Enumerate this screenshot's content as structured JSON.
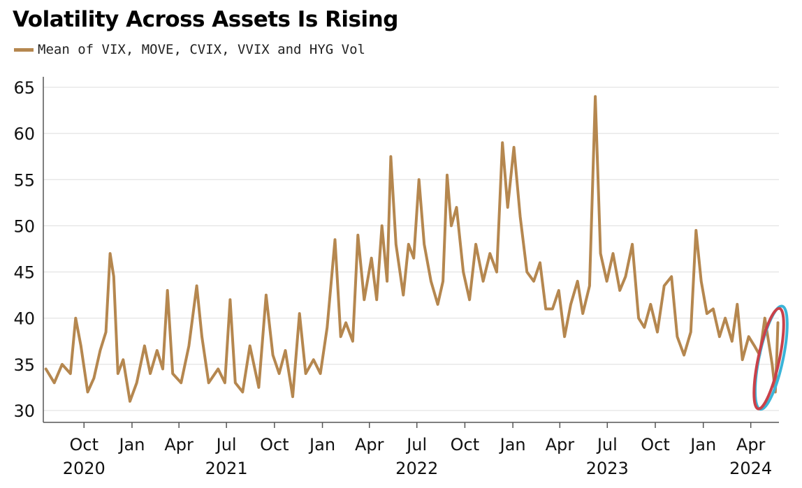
{
  "chart_data": {
    "type": "line",
    "title": "Volatility Across Assets Is Rising",
    "xlabel": "",
    "ylabel": "",
    "ylim": [
      30,
      65
    ],
    "y_ticks": [
      "30",
      "35",
      "40",
      "45",
      "50",
      "55",
      "60",
      "65"
    ],
    "x_ticks": [
      {
        "month": "Oct",
        "year": "2020"
      },
      {
        "month": "Jan",
        "year": ""
      },
      {
        "month": "Apr",
        "year": ""
      },
      {
        "month": "Jul",
        "year": "2021"
      },
      {
        "month": "Oct",
        "year": ""
      },
      {
        "month": "Jan",
        "year": ""
      },
      {
        "month": "Apr",
        "year": ""
      },
      {
        "month": "Jul",
        "year": "2022"
      },
      {
        "month": "Oct",
        "year": ""
      },
      {
        "month": "Jan",
        "year": ""
      },
      {
        "month": "Apr",
        "year": ""
      },
      {
        "month": "Jul",
        "year": "2023"
      },
      {
        "month": "Oct",
        "year": ""
      },
      {
        "month": "Jan",
        "year": ""
      },
      {
        "month": "Apr",
        "year": "2024"
      }
    ],
    "xlim": [
      "2020-07-15",
      "2024-05-25"
    ],
    "grid": true,
    "legend_position": "top-left",
    "series": [
      {
        "name": "Mean of VIX, MOVE, CVIX, VVIX and HYG Vol",
        "color": "#b5874f",
        "points": [
          [
            "2020-07-20",
            34.5
          ],
          [
            "2020-08-05",
            33.0
          ],
          [
            "2020-08-20",
            35.0
          ],
          [
            "2020-09-05",
            34.0
          ],
          [
            "2020-09-15",
            40.0
          ],
          [
            "2020-09-25",
            37.0
          ],
          [
            "2020-10-08",
            32.0
          ],
          [
            "2020-10-20",
            33.5
          ],
          [
            "2020-11-01",
            36.5
          ],
          [
            "2020-11-12",
            38.5
          ],
          [
            "2020-11-20",
            47.0
          ],
          [
            "2020-11-27",
            44.5
          ],
          [
            "2020-12-05",
            34.0
          ],
          [
            "2020-12-15",
            35.5
          ],
          [
            "2020-12-28",
            31.0
          ],
          [
            "2021-01-10",
            33.0
          ],
          [
            "2021-01-25",
            37.0
          ],
          [
            "2021-02-05",
            34.0
          ],
          [
            "2021-02-18",
            36.5
          ],
          [
            "2021-03-01",
            34.5
          ],
          [
            "2021-03-10",
            43.0
          ],
          [
            "2021-03-20",
            34.0
          ],
          [
            "2021-04-05",
            33.0
          ],
          [
            "2021-04-20",
            37.0
          ],
          [
            "2021-05-05",
            43.5
          ],
          [
            "2021-05-15",
            38.0
          ],
          [
            "2021-05-28",
            33.0
          ],
          [
            "2021-06-15",
            34.5
          ],
          [
            "2021-06-28",
            33.0
          ],
          [
            "2021-07-08",
            42.0
          ],
          [
            "2021-07-18",
            33.0
          ],
          [
            "2021-08-01",
            32.0
          ],
          [
            "2021-08-15",
            37.0
          ],
          [
            "2021-09-01",
            32.5
          ],
          [
            "2021-09-15",
            42.5
          ],
          [
            "2021-09-28",
            36.0
          ],
          [
            "2021-10-10",
            34.0
          ],
          [
            "2021-10-22",
            36.5
          ],
          [
            "2021-11-05",
            31.5
          ],
          [
            "2021-11-18",
            40.5
          ],
          [
            "2021-11-30",
            34.0
          ],
          [
            "2021-12-15",
            35.5
          ],
          [
            "2021-12-28",
            34.0
          ],
          [
            "2022-01-10",
            39.0
          ],
          [
            "2022-01-25",
            48.5
          ],
          [
            "2022-02-05",
            38.0
          ],
          [
            "2022-02-15",
            39.5
          ],
          [
            "2022-02-28",
            37.5
          ],
          [
            "2022-03-10",
            49.0
          ],
          [
            "2022-03-22",
            42.0
          ],
          [
            "2022-04-05",
            46.5
          ],
          [
            "2022-04-15",
            42.0
          ],
          [
            "2022-04-25",
            50.0
          ],
          [
            "2022-05-05",
            44.0
          ],
          [
            "2022-05-12",
            57.5
          ],
          [
            "2022-05-22",
            48.0
          ],
          [
            "2022-06-05",
            42.5
          ],
          [
            "2022-06-15",
            48.0
          ],
          [
            "2022-06-25",
            46.5
          ],
          [
            "2022-07-05",
            55.0
          ],
          [
            "2022-07-15",
            48.0
          ],
          [
            "2022-07-28",
            44.0
          ],
          [
            "2022-08-10",
            41.5
          ],
          [
            "2022-08-20",
            44.0
          ],
          [
            "2022-08-28",
            55.5
          ],
          [
            "2022-09-05",
            50.0
          ],
          [
            "2022-09-15",
            52.0
          ],
          [
            "2022-09-28",
            45.0
          ],
          [
            "2022-10-10",
            42.0
          ],
          [
            "2022-10-22",
            48.0
          ],
          [
            "2022-11-05",
            44.0
          ],
          [
            "2022-11-18",
            47.0
          ],
          [
            "2022-12-01",
            45.0
          ],
          [
            "2022-12-12",
            59.0
          ],
          [
            "2022-12-22",
            52.0
          ],
          [
            "2023-01-03",
            58.5
          ],
          [
            "2023-01-15",
            51.0
          ],
          [
            "2023-01-28",
            45.0
          ],
          [
            "2023-02-10",
            44.0
          ],
          [
            "2023-02-22",
            46.0
          ],
          [
            "2023-03-05",
            41.0
          ],
          [
            "2023-03-18",
            41.0
          ],
          [
            "2023-03-30",
            43.0
          ],
          [
            "2023-04-10",
            38.0
          ],
          [
            "2023-04-22",
            41.5
          ],
          [
            "2023-05-05",
            44.0
          ],
          [
            "2023-05-15",
            40.5
          ],
          [
            "2023-05-28",
            43.5
          ],
          [
            "2023-06-08",
            64.0
          ],
          [
            "2023-06-18",
            47.0
          ],
          [
            "2023-06-30",
            44.0
          ],
          [
            "2023-07-12",
            47.0
          ],
          [
            "2023-07-25",
            43.0
          ],
          [
            "2023-08-05",
            44.5
          ],
          [
            "2023-08-18",
            48.0
          ],
          [
            "2023-08-30",
            40.0
          ],
          [
            "2023-09-10",
            39.0
          ],
          [
            "2023-09-22",
            41.5
          ],
          [
            "2023-10-05",
            38.5
          ],
          [
            "2023-10-18",
            43.5
          ],
          [
            "2023-11-01",
            44.5
          ],
          [
            "2023-11-12",
            38.0
          ],
          [
            "2023-11-25",
            36.0
          ],
          [
            "2023-12-08",
            38.5
          ],
          [
            "2023-12-18",
            49.5
          ],
          [
            "2023-12-28",
            44.0
          ],
          [
            "2024-01-08",
            40.5
          ],
          [
            "2024-01-20",
            41.0
          ],
          [
            "2024-02-01",
            38.0
          ],
          [
            "2024-02-12",
            40.0
          ],
          [
            "2024-02-25",
            37.5
          ],
          [
            "2024-03-06",
            41.5
          ],
          [
            "2024-03-16",
            35.5
          ],
          [
            "2024-03-28",
            38.0
          ],
          [
            "2024-04-08",
            37.0
          ],
          [
            "2024-04-18",
            36.0
          ],
          [
            "2024-04-28",
            40.0
          ],
          [
            "2024-05-05",
            37.5
          ],
          [
            "2024-05-12",
            35.0
          ],
          [
            "2024-05-18",
            32.0
          ],
          [
            "2024-05-21",
            36.0
          ],
          [
            "2024-05-23",
            39.5
          ]
        ]
      }
    ],
    "annotation": {
      "type": "ellipse-highlight",
      "around": [
        "2024-04-20",
        "2024-05-25"
      ],
      "colors": [
        "#3bb4d8",
        "#c9414a"
      ]
    }
  }
}
